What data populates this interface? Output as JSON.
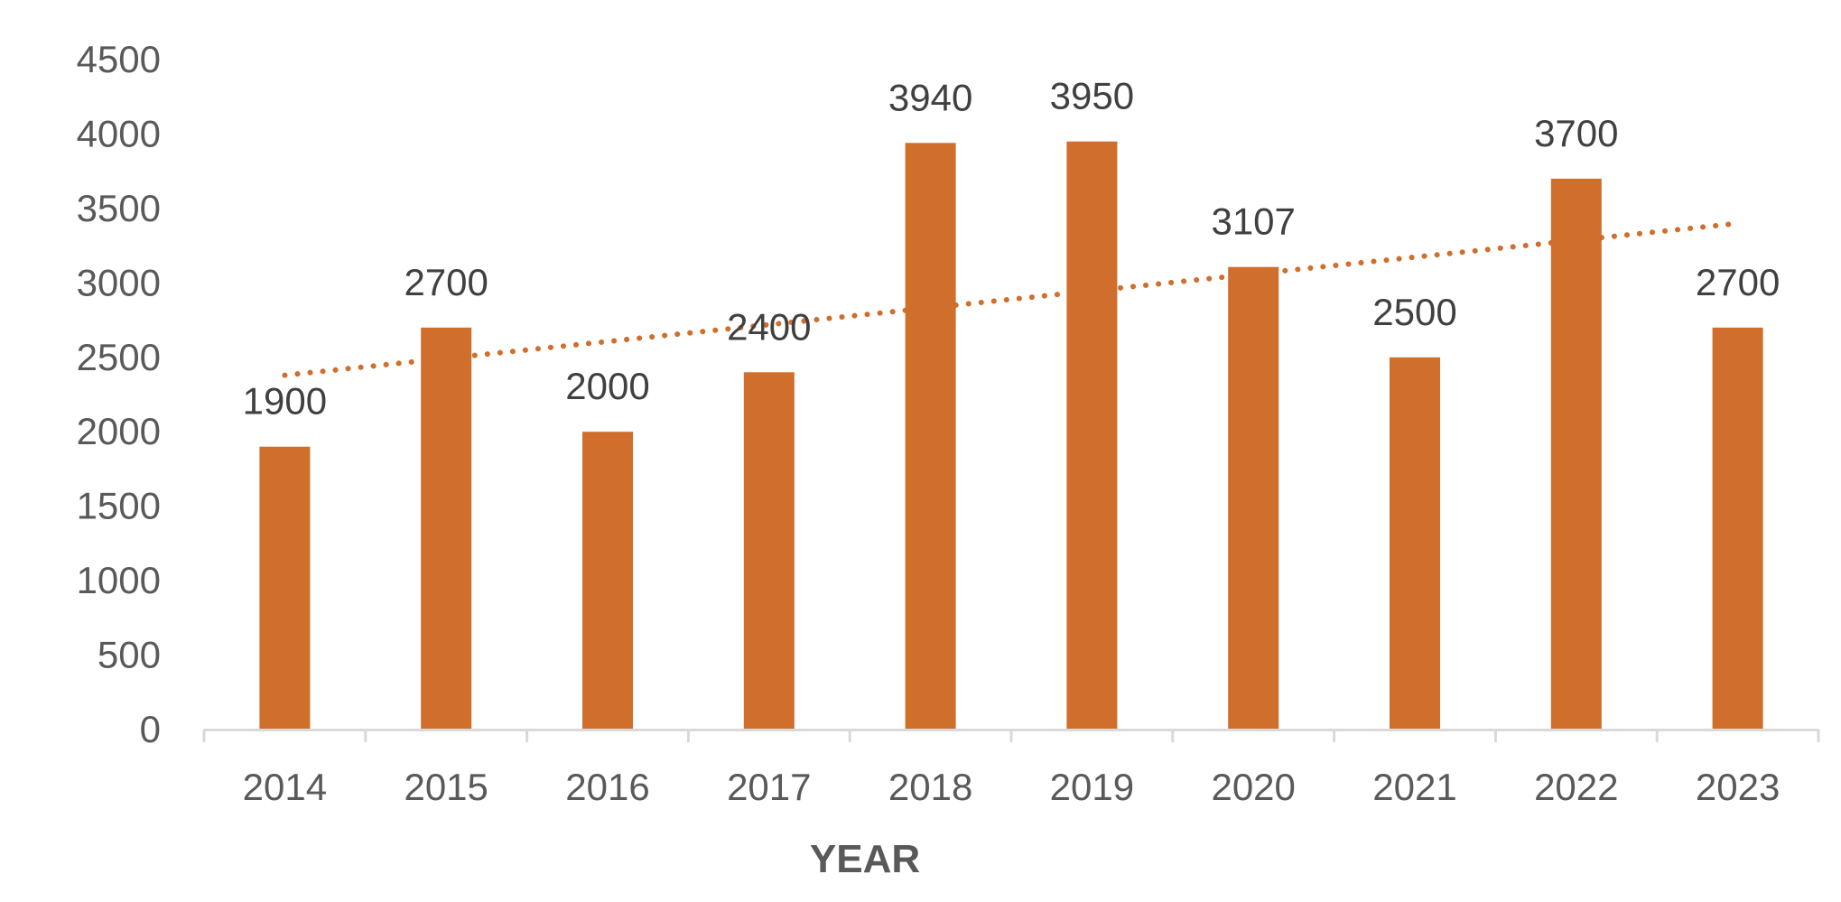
{
  "chart_data": {
    "type": "bar",
    "title": "",
    "xlabel": "YEAR",
    "ylabel": "",
    "categories": [
      "2014",
      "2015",
      "2016",
      "2017",
      "2018",
      "2019",
      "2020",
      "2021",
      "2022",
      "2023"
    ],
    "values": [
      1900,
      2700,
      2000,
      2400,
      3940,
      3950,
      3107,
      2500,
      3700,
      2700
    ],
    "data_labels": [
      "1900",
      "2700",
      "2000",
      "2400",
      "3940",
      "3950",
      "3107",
      "2500",
      "3700",
      "2700"
    ],
    "ylim": [
      0,
      4500
    ],
    "yticks": [
      0,
      500,
      1000,
      1500,
      2000,
      2500,
      3000,
      3500,
      4000,
      4500
    ],
    "ytick_labels": [
      "0",
      "500",
      "1000",
      "1500",
      "2000",
      "2500",
      "3000",
      "3500",
      "4000",
      "4500"
    ],
    "grid": false,
    "legend": "none",
    "trendline": {
      "type": "linear",
      "style": "dotted",
      "start": 2380,
      "end": 3400
    },
    "colors": {
      "bar": "#D06E2C",
      "trendline": "#D06E2C",
      "axis": "#D9D9D9"
    }
  }
}
